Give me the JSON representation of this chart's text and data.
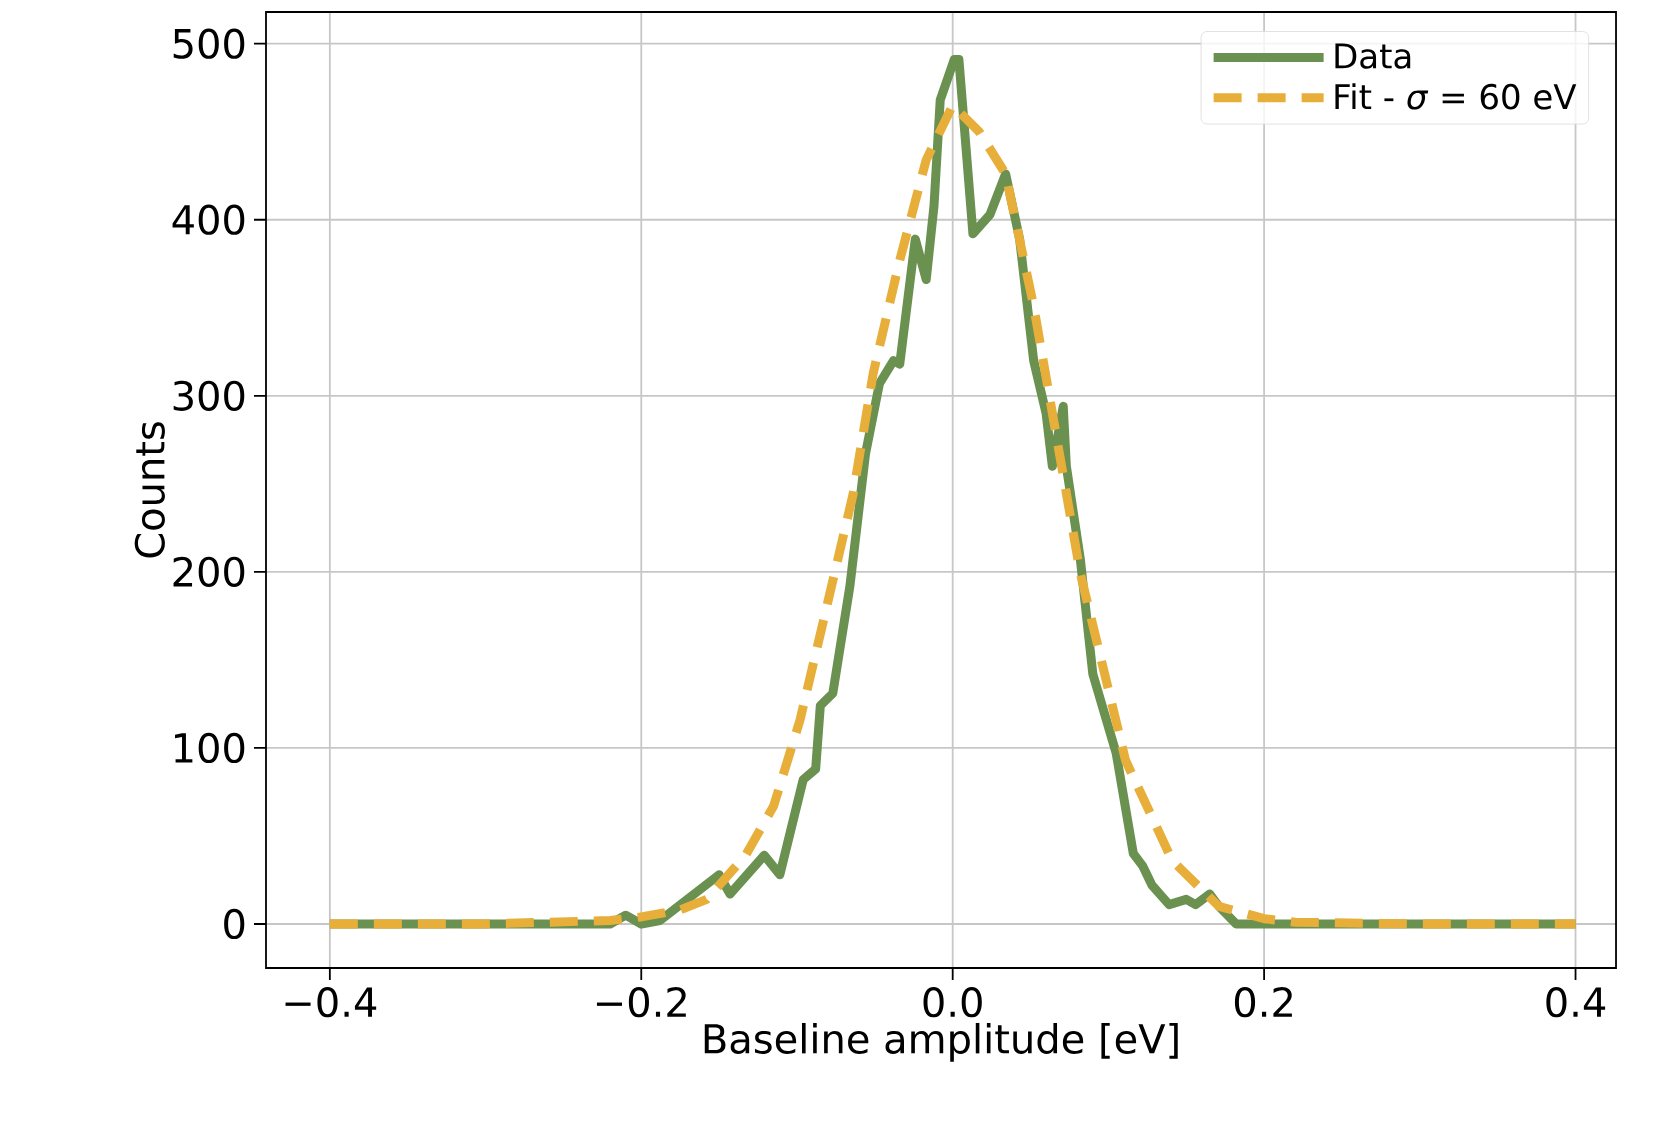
{
  "chart_data": {
    "type": "line",
    "xlabel": "Baseline amplitude [eV]",
    "ylabel": "Counts",
    "xlim": [
      -0.441,
      0.426
    ],
    "ylim": [
      -25,
      518
    ],
    "xticks": [
      {
        "value": -0.4,
        "label": "−0.4"
      },
      {
        "value": -0.2,
        "label": "−0.2"
      },
      {
        "value": 0,
        "label": "0.0"
      },
      {
        "value": 0.2,
        "label": "0.2"
      },
      {
        "value": 0.4,
        "label": "0.4"
      }
    ],
    "yticks": [
      0,
      100,
      200,
      300,
      400,
      500
    ],
    "grid": true,
    "legend": "top right",
    "series": [
      {
        "name": "Data",
        "color": "#6a9150",
        "line_style": "solid",
        "x": [
          -0.4,
          -0.3,
          -0.22,
          -0.21,
          -0.2,
          -0.188,
          -0.15,
          -0.143,
          -0.121,
          -0.111,
          -0.096,
          -0.088,
          -0.085,
          -0.077,
          -0.066,
          -0.056,
          -0.047,
          -0.038,
          -0.034,
          -0.024,
          -0.017,
          -0.012,
          -0.008,
          0.001,
          0.004,
          0.013,
          0.024,
          0.034,
          0.043,
          0.052,
          0.06,
          0.064,
          0.071,
          0.073,
          0.082,
          0.09,
          0.105,
          0.116,
          0.122,
          0.128,
          0.139,
          0.15,
          0.156,
          0.165,
          0.171,
          0.182,
          0.25,
          0.4
        ],
        "values": [
          0,
          0,
          0,
          5,
          0,
          2,
          28,
          17,
          39,
          28,
          82,
          88,
          124,
          131,
          192,
          267,
          307,
          320,
          318,
          389,
          366,
          408,
          468,
          491,
          491,
          392,
          403,
          426,
          389,
          320,
          290,
          260,
          294,
          260,
          207,
          142,
          97,
          40,
          33,
          22,
          11,
          14,
          11,
          17,
          10,
          0,
          0,
          0
        ]
      },
      {
        "name": "Fit - *σ* = 60 eV",
        "color": "#e8ae3a",
        "line_style": "dashed",
        "x": [
          -0.4,
          -0.3,
          -0.22,
          -0.2,
          -0.175,
          -0.158,
          -0.133,
          -0.115,
          -0.098,
          -0.082,
          -0.064,
          -0.051,
          -0.034,
          -0.017,
          0.0,
          0.017,
          0.034,
          0.052,
          0.082,
          0.111,
          0.141,
          0.171,
          0.2,
          0.22,
          0.3,
          0.4
        ],
        "values": [
          0,
          0,
          2,
          4,
          8,
          14,
          39,
          67,
          116,
          176,
          244,
          313,
          377,
          434,
          465,
          450,
          426,
          351,
          199,
          93,
          36,
          10,
          3,
          1,
          0,
          0
        ]
      }
    ]
  }
}
